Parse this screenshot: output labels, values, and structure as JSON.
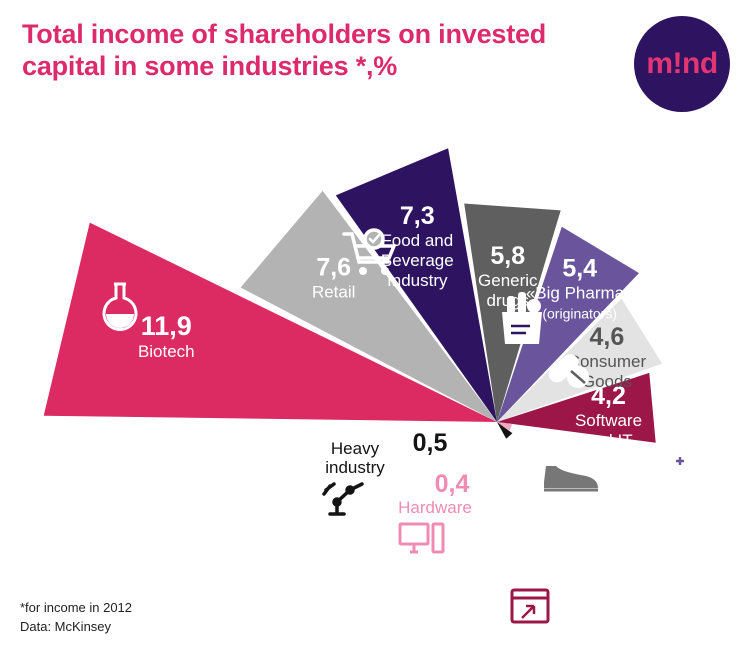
{
  "title": "Total income of shareholders on invested capital in some industries *,%",
  "logo": {
    "text": "m!nd",
    "bg": "#2e1460",
    "fg": "#e33473"
  },
  "footnote": {
    "note": "*for income in 2012",
    "source": "Data: McKinsey"
  },
  "chart_data": {
    "type": "pie",
    "subtype": "polar-area (nightingale rose), upper-right fan",
    "unit": "%",
    "title": "Total income of shareholders on invested capital in some industries *,%",
    "categories": [
      "Biotech",
      "Retail",
      "Food and Beverage Industry",
      "Generic drugs",
      "«Big Pharma» (originators)",
      "Consumer Goods",
      "Software and IT",
      "Hardware",
      "Heavy industry"
    ],
    "values": [
      11.9,
      7.6,
      7.3,
      5.8,
      5.4,
      4.6,
      4.2,
      0.4,
      0.5
    ],
    "value_labels": [
      "11,9",
      "7,6",
      "7,3",
      "5,8",
      "5,4",
      "4,6",
      "4,2",
      "0,4",
      "0,5"
    ],
    "label_lines": [
      [
        "Biotech"
      ],
      [
        "Retail"
      ],
      [
        "Food and",
        "Beverage",
        "Industry"
      ],
      [
        "Generic",
        "drugs"
      ],
      [
        "«Big Pharma»",
        "(originators)"
      ],
      [
        "Consumer",
        "Goods"
      ],
      [
        "Software",
        "and IT"
      ],
      [
        "Hardware"
      ],
      [
        "Heavy",
        "industry"
      ]
    ],
    "colors": [
      "#dc2a62",
      "#b3b3b3",
      "#2e1460",
      "#5f5f5f",
      "#6a559d",
      "#e3e3e3",
      "#9c1747",
      "#f2a6c5",
      "#141414"
    ],
    "value_colors": [
      "#ffffff",
      "#ffffff",
      "#ffffff",
      "#ffffff",
      "#ffffff",
      "#555555",
      "#ffffff",
      "#f08cb3",
      "#141414"
    ],
    "label_colors": [
      "#ffffff",
      "#ffffff",
      "#ffffff",
      "#ffffff",
      "#ffffff",
      "#555555",
      "#ffffff",
      "#f08cb3",
      "#141414"
    ],
    "icons": [
      "flask-icon",
      "shopping-cart-icon",
      "grocery-bag-icon",
      "pills-icon",
      "medicine-bottle-icon",
      "sneaker-icon",
      "software-window-icon",
      "computer-icon",
      "robot-arm-icon"
    ]
  }
}
